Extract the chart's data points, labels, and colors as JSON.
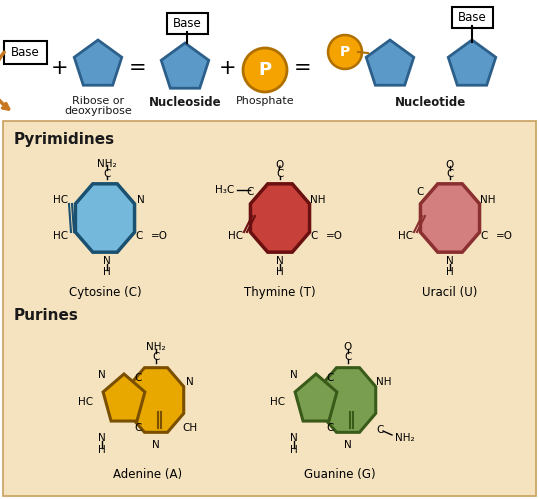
{
  "bg_top": "#ffffff",
  "bg_bottom": "#f5e3c0",
  "blue_pent": "#5b9ac8",
  "orange_circ": "#f5a300",
  "red_hex": "#c8403a",
  "pink_hex": "#d47f7f",
  "blue_hex": "#74b8dc",
  "yellow_hex": "#e8a800",
  "green_hex": "#7a9e50",
  "text_color": "#1a1a1a",
  "pent_border": "#2c5f8a",
  "red_border": "#6b1010",
  "pink_border": "#8b3030",
  "blue_border": "#1a5070",
  "yellow_border": "#7a5000",
  "green_border": "#3a5a1a",
  "orange_border": "#b07000",
  "title_pyrimidines": "Pyrimidines",
  "title_purines": "Purines",
  "label_cytosine": "Cytosine (C)",
  "label_thymine": "Thymine (T)",
  "label_uracil": "Uracil (U)",
  "label_adenine": "Adenine (A)",
  "label_guanine": "Guanine (G)"
}
